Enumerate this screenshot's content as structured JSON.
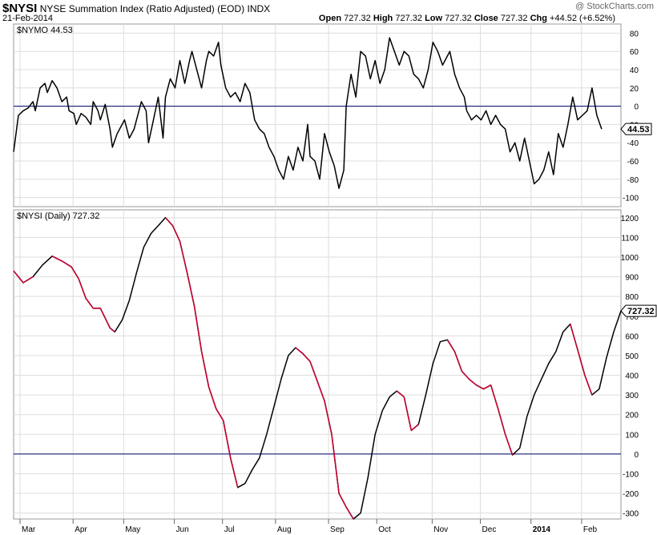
{
  "header": {
    "symbol": "$NYSI",
    "description": "NYSE Summation Index (Ratio Adjusted) (EOD)",
    "exchange": "INDX",
    "date": "21-Feb-2014",
    "watermark": "@ StockCharts.com",
    "quote": {
      "open_label": "Open",
      "open": "727.32",
      "high_label": "High",
      "high": "727.32",
      "low_label": "Low",
      "low": "727.32",
      "close_label": "Close",
      "close": "727.32",
      "chg_label": "Chg",
      "chg": "+44.52 (+6.52%)"
    }
  },
  "colors": {
    "line": "#000000",
    "declining": "#cc0033",
    "zero": "#000066",
    "grid": "#dddddd"
  },
  "chart_data": [
    {
      "type": "line",
      "panel_label": "$NYMO 44.53",
      "last_value_label": "44.53",
      "ylim": [
        -110,
        90
      ],
      "yticks": [
        80,
        60,
        40,
        20,
        0,
        -20,
        -40,
        -60,
        -80,
        -100
      ],
      "x_range": [
        0,
        252
      ],
      "series": [
        {
          "values": [
            [
              0,
              -50
            ],
            [
              2,
              -10
            ],
            [
              4,
              -5
            ],
            [
              6,
              -2
            ],
            [
              8,
              5
            ],
            [
              9,
              -5
            ],
            [
              11,
              20
            ],
            [
              13,
              25
            ],
            [
              14,
              15
            ],
            [
              16,
              28
            ],
            [
              18,
              20
            ],
            [
              20,
              5
            ],
            [
              22,
              10
            ],
            [
              23,
              -5
            ],
            [
              25,
              -8
            ],
            [
              26,
              -20
            ],
            [
              28,
              -8
            ],
            [
              30,
              -12
            ],
            [
              32,
              -20
            ],
            [
              33,
              5
            ],
            [
              35,
              -5
            ],
            [
              36,
              -15
            ],
            [
              38,
              2
            ],
            [
              40,
              -25
            ],
            [
              41,
              -45
            ],
            [
              43,
              -30
            ],
            [
              45,
              -20
            ],
            [
              46,
              -15
            ],
            [
              48,
              -35
            ],
            [
              50,
              -25
            ],
            [
              52,
              -5
            ],
            [
              53,
              5
            ],
            [
              55,
              -5
            ],
            [
              56,
              -40
            ],
            [
              58,
              -15
            ],
            [
              60,
              10
            ],
            [
              62,
              -35
            ],
            [
              63,
              10
            ],
            [
              65,
              30
            ],
            [
              67,
              20
            ],
            [
              69,
              50
            ],
            [
              71,
              25
            ],
            [
              73,
              50
            ],
            [
              74,
              60
            ],
            [
              76,
              40
            ],
            [
              78,
              20
            ],
            [
              80,
              50
            ],
            [
              81,
              60
            ],
            [
              83,
              55
            ],
            [
              85,
              70
            ],
            [
              86,
              45
            ],
            [
              88,
              20
            ],
            [
              90,
              10
            ],
            [
              92,
              15
            ],
            [
              94,
              5
            ],
            [
              96,
              25
            ],
            [
              98,
              15
            ],
            [
              100,
              -15
            ],
            [
              102,
              -25
            ],
            [
              104,
              -30
            ],
            [
              106,
              -45
            ],
            [
              108,
              -55
            ],
            [
              110,
              -70
            ],
            [
              112,
              -80
            ],
            [
              114,
              -55
            ],
            [
              116,
              -70
            ],
            [
              118,
              -45
            ],
            [
              120,
              -60
            ],
            [
              122,
              -20
            ],
            [
              123,
              -55
            ],
            [
              125,
              -60
            ],
            [
              127,
              -80
            ],
            [
              129,
              -30
            ],
            [
              131,
              -50
            ],
            [
              133,
              -65
            ],
            [
              135,
              -90
            ],
            [
              137,
              -70
            ],
            [
              138,
              0
            ],
            [
              140,
              35
            ],
            [
              142,
              10
            ],
            [
              144,
              60
            ],
            [
              146,
              55
            ],
            [
              148,
              30
            ],
            [
              150,
              50
            ],
            [
              152,
              25
            ],
            [
              154,
              40
            ],
            [
              156,
              75
            ],
            [
              158,
              60
            ],
            [
              160,
              45
            ],
            [
              162,
              60
            ],
            [
              164,
              55
            ],
            [
              166,
              35
            ],
            [
              168,
              30
            ],
            [
              170,
              20
            ],
            [
              172,
              40
            ],
            [
              174,
              70
            ],
            [
              176,
              60
            ],
            [
              178,
              45
            ],
            [
              180,
              55
            ],
            [
              181,
              60
            ],
            [
              183,
              35
            ],
            [
              185,
              20
            ],
            [
              187,
              10
            ],
            [
              188,
              -5
            ],
            [
              190,
              -15
            ],
            [
              192,
              -10
            ],
            [
              194,
              -15
            ],
            [
              196,
              -5
            ],
            [
              198,
              -20
            ],
            [
              200,
              -10
            ],
            [
              202,
              -20
            ],
            [
              204,
              -25
            ],
            [
              206,
              -50
            ],
            [
              208,
              -40
            ],
            [
              210,
              -60
            ],
            [
              212,
              -35
            ],
            [
              214,
              -60
            ],
            [
              216,
              -85
            ],
            [
              218,
              -80
            ],
            [
              220,
              -70
            ],
            [
              222,
              -50
            ],
            [
              224,
              -75
            ],
            [
              226,
              -30
            ],
            [
              228,
              -45
            ],
            [
              230,
              -20
            ],
            [
              232,
              10
            ],
            [
              234,
              -15
            ],
            [
              236,
              -10
            ],
            [
              238,
              -5
            ],
            [
              240,
              20
            ],
            [
              242,
              -10
            ],
            [
              244,
              -25
            ]
          ]
        }
      ]
    },
    {
      "type": "line",
      "panel_label": "$NYSI (Daily) 727.32",
      "last_value_label": "727.32",
      "ylim": [
        -330,
        1240
      ],
      "yticks": [
        1200,
        1100,
        1000,
        900,
        800,
        700,
        600,
        500,
        400,
        300,
        200,
        100,
        0,
        -100,
        -200,
        -300
      ],
      "x_range": [
        0,
        252
      ],
      "series": [
        {
          "values": [
            [
              0,
              930
            ],
            [
              4,
              870
            ],
            [
              8,
              900
            ],
            [
              12,
              960
            ],
            [
              16,
              1005
            ],
            [
              20,
              980
            ],
            [
              24,
              950
            ],
            [
              27,
              890
            ],
            [
              30,
              790
            ],
            [
              33,
              740
            ],
            [
              36,
              740
            ],
            [
              38,
              690
            ],
            [
              40,
              640
            ],
            [
              42,
              620
            ],
            [
              45,
              680
            ],
            [
              48,
              780
            ],
            [
              51,
              920
            ],
            [
              54,
              1050
            ],
            [
              57,
              1120
            ],
            [
              60,
              1160
            ],
            [
              63,
              1200
            ],
            [
              66,
              1160
            ],
            [
              69,
              1080
            ],
            [
              72,
              920
            ],
            [
              75,
              750
            ],
            [
              78,
              520
            ],
            [
              81,
              340
            ],
            [
              84,
              230
            ],
            [
              87,
              170
            ],
            [
              90,
              -20
            ],
            [
              93,
              -170
            ],
            [
              96,
              -150
            ],
            [
              99,
              -80
            ],
            [
              102,
              -20
            ],
            [
              105,
              100
            ],
            [
              108,
              240
            ],
            [
              111,
              380
            ],
            [
              114,
              500
            ],
            [
              117,
              540
            ],
            [
              120,
              510
            ],
            [
              123,
              470
            ],
            [
              126,
              370
            ],
            [
              129,
              270
            ],
            [
              132,
              100
            ],
            [
              135,
              -200
            ],
            [
              138,
              -270
            ],
            [
              141,
              -330
            ],
            [
              144,
              -300
            ],
            [
              147,
              -120
            ],
            [
              150,
              100
            ],
            [
              153,
              220
            ],
            [
              156,
              290
            ],
            [
              159,
              320
            ],
            [
              162,
              290
            ],
            [
              165,
              120
            ],
            [
              168,
              150
            ],
            [
              171,
              300
            ],
            [
              174,
              460
            ],
            [
              177,
              570
            ],
            [
              180,
              580
            ],
            [
              183,
              520
            ],
            [
              186,
              420
            ],
            [
              189,
              380
            ],
            [
              192,
              350
            ],
            [
              195,
              330
            ],
            [
              198,
              350
            ],
            [
              201,
              230
            ],
            [
              204,
              100
            ],
            [
              207,
              -5
            ],
            [
              210,
              30
            ],
            [
              213,
              190
            ],
            [
              216,
              300
            ],
            [
              219,
              380
            ],
            [
              222,
              460
            ],
            [
              225,
              520
            ],
            [
              228,
              620
            ],
            [
              231,
              660
            ],
            [
              234,
              530
            ],
            [
              237,
              400
            ],
            [
              240,
              300
            ],
            [
              243,
              330
            ],
            [
              246,
              490
            ],
            [
              249,
              620
            ],
            [
              252,
              727
            ]
          ]
        }
      ],
      "declining_segments": [
        [
          0,
          10
        ],
        [
          16,
          42
        ],
        [
          63,
          93
        ],
        [
          117,
          141
        ],
        [
          159,
          168
        ],
        [
          180,
          207
        ],
        [
          231,
          240
        ]
      ]
    }
  ],
  "x_axis": {
    "labels": [
      {
        "x": 4,
        "text": "Mar"
      },
      {
        "x": 26,
        "text": "Apr"
      },
      {
        "x": 47,
        "text": "May"
      },
      {
        "x": 68,
        "text": "Jun"
      },
      {
        "x": 88,
        "text": "Jul"
      },
      {
        "x": 110,
        "text": "Aug"
      },
      {
        "x": 132,
        "text": "Sep"
      },
      {
        "x": 152,
        "text": "Oct"
      },
      {
        "x": 175,
        "text": "Nov"
      },
      {
        "x": 195,
        "text": "Dec"
      },
      {
        "x": 216,
        "text": "2014",
        "bold": true
      },
      {
        "x": 237,
        "text": "Feb"
      }
    ]
  }
}
